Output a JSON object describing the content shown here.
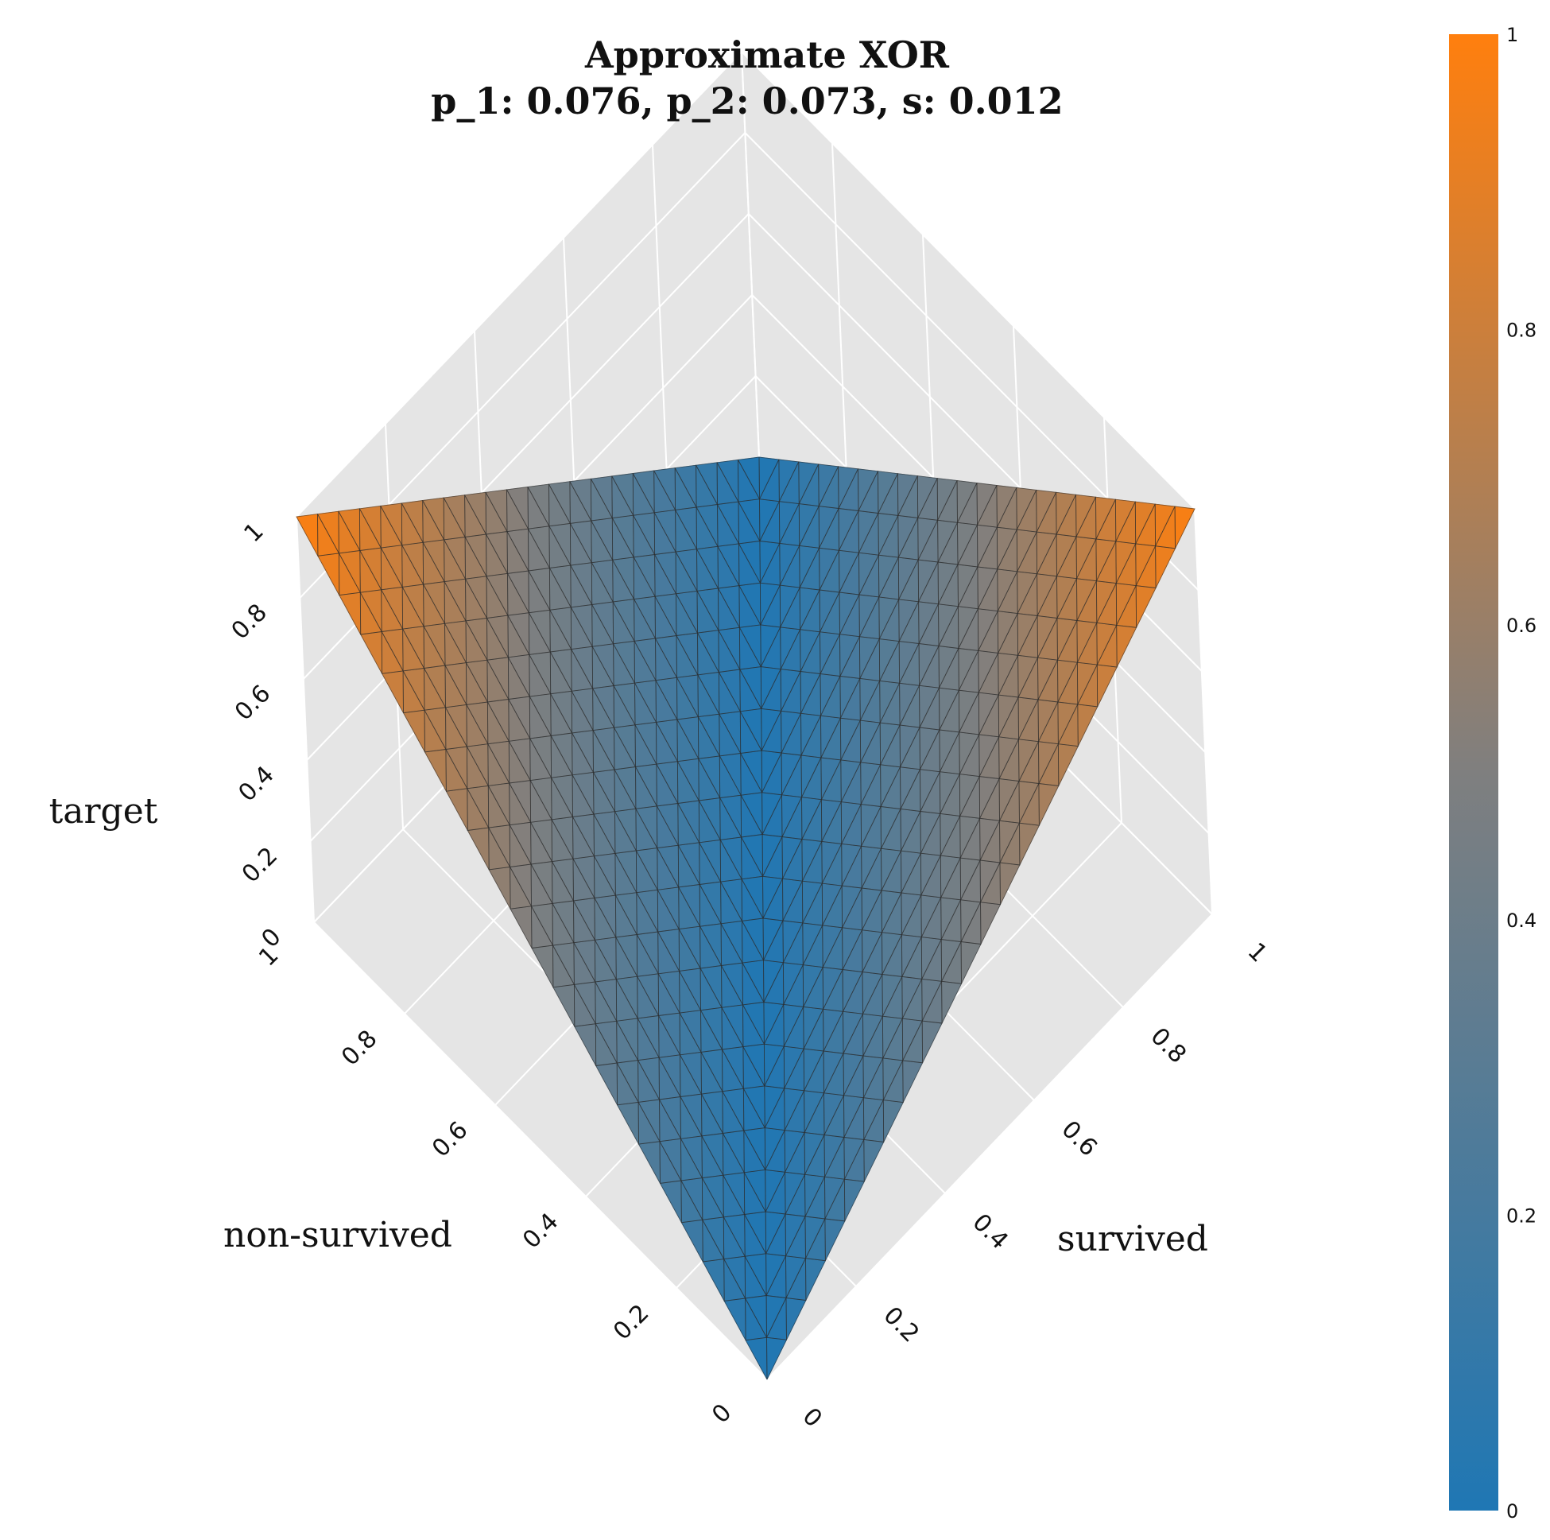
{
  "chart_data": {
    "type": "surface3d",
    "title_lines": [
      "Approximate XOR",
      "p_1: 0.076, p_2: 0.073, s: 0.012"
    ],
    "axes": {
      "x": {
        "label": "non-survived",
        "range": [
          0,
          1
        ],
        "ticks": [
          "0",
          "0.2",
          "0.4",
          "0.6",
          "0.8",
          "1"
        ]
      },
      "y": {
        "label": "survived",
        "range": [
          0,
          1
        ],
        "ticks": [
          "0",
          "0.2",
          "0.4",
          "0.6",
          "0.8",
          "1"
        ]
      },
      "z": {
        "label": "target",
        "range": [
          0,
          1
        ],
        "ticks": [
          "0",
          "0.2",
          "0.4",
          "0.6",
          "0.8",
          "1"
        ]
      }
    },
    "surface_corners": [
      {
        "x": 0,
        "y": 0,
        "z": 0
      },
      {
        "x": 1,
        "y": 0,
        "z": 1
      },
      {
        "x": 0,
        "y": 1,
        "z": 1
      },
      {
        "x": 1,
        "y": 1,
        "z": 0
      }
    ],
    "colorscale": {
      "range": [
        0,
        1
      ],
      "ticks": [
        "0",
        "0.2",
        "0.4",
        "0.6",
        "0.8",
        "1"
      ],
      "low_color": "#1f77b4",
      "mid_color": "#7f7f7f",
      "high_color": "#ff7f0e"
    },
    "grid": true,
    "scene_background": "#e5e5e5",
    "gridline_color": "#ffffff",
    "mesh_line_color": "#2b2b2b"
  }
}
